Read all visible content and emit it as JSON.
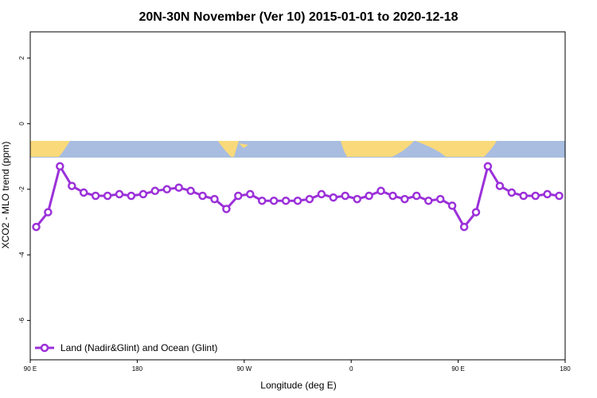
{
  "chart_data": {
    "type": "line",
    "title": "20N-30N November (Ver 10)   2015-01-01 to 2020-12-18",
    "xlabel": "Longitude (deg E)",
    "ylabel": "XCO2 - MLO trend (ppm)",
    "x_tick_labels": [
      "90 E",
      "180",
      "90 W",
      "0",
      "90 E",
      "180"
    ],
    "y_tick_labels": [
      "2",
      "0",
      "-2",
      "-4",
      "-6"
    ],
    "y_ticks": [
      2,
      0,
      -2,
      -4,
      -6
    ],
    "ylim": [
      -7.2,
      2.8
    ],
    "x_note": "Longitude runs 90 E to 180, wrapping through 180 once (a 360-degree window plus a repeated 90 E to 180 span).",
    "series": [
      {
        "name": "Land (Nadir&Glint) and Ocean (Glint)",
        "color": "#9b30d9",
        "marker": "open-circle",
        "x": [
          95,
          105,
          115,
          125,
          135,
          145,
          155,
          165,
          175,
          -175,
          -165,
          -155,
          -145,
          -135,
          -125,
          -115,
          -105,
          -95,
          -85,
          -75,
          -65,
          -55,
          -45,
          -35,
          -25,
          -15,
          -5,
          5,
          15,
          25,
          35,
          45,
          55,
          65,
          75,
          85,
          95,
          105,
          115,
          125,
          135,
          145,
          155,
          165,
          175
        ],
        "values": [
          -3.15,
          -2.7,
          -1.3,
          -1.9,
          -2.1,
          -2.2,
          -2.2,
          -2.15,
          -2.2,
          -2.15,
          -2.05,
          -2.0,
          -1.95,
          -2.05,
          -2.2,
          -2.3,
          -2.6,
          -2.2,
          -2.15,
          -2.35,
          -2.35,
          -2.35,
          -2.35,
          -2.3,
          -2.15,
          -2.25,
          -2.2,
          -2.3,
          -2.2,
          -2.05,
          -2.2,
          -2.3,
          -2.2,
          -2.35,
          -2.3,
          -2.5,
          -3.15,
          -2.7,
          -1.3,
          -1.9,
          -2.1,
          -2.2,
          -2.2,
          -2.15,
          -2.2
        ]
      }
    ],
    "legend": {
      "position": "bottom-left"
    },
    "colors": {
      "land": "#f9d97a",
      "ocean": "#a8bde0"
    }
  }
}
